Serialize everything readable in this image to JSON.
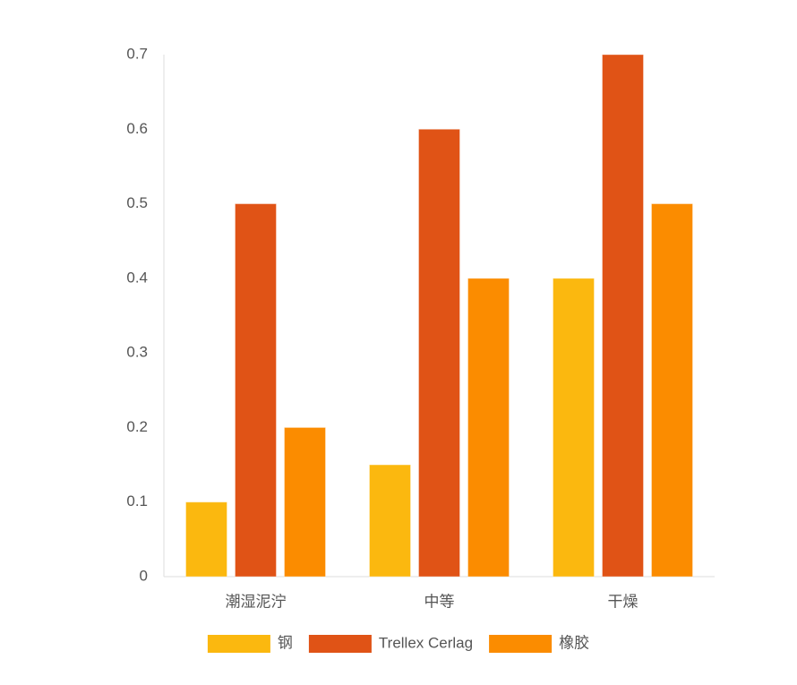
{
  "chart_data": {
    "type": "bar",
    "categories": [
      "潮湿泥泞",
      "中等",
      "干燥"
    ],
    "series": [
      {
        "name": "钢",
        "color": "#fbb80f",
        "values": [
          0.1,
          0.15,
          0.4
        ]
      },
      {
        "name": "Trellex Cerlag",
        "color": "#e05316",
        "values": [
          0.5,
          0.6,
          0.7
        ]
      },
      {
        "name": "橡胶",
        "color": "#fb8c00",
        "values": [
          0.2,
          0.4,
          0.5
        ]
      }
    ],
    "ylim": [
      0,
      0.7
    ],
    "yticks": [
      0,
      0.1,
      0.2,
      0.3,
      0.4,
      0.5,
      0.6,
      0.7
    ],
    "grid": false,
    "legend": "bottom"
  }
}
